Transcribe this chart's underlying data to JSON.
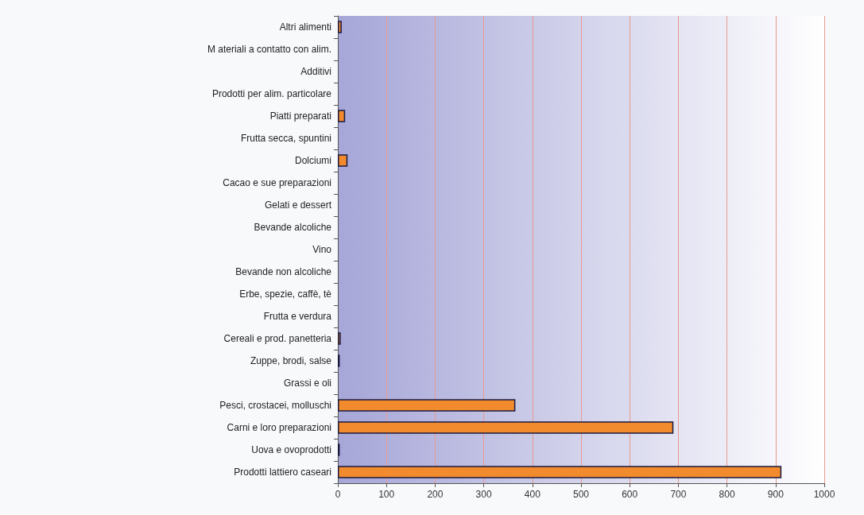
{
  "chart_data": {
    "type": "bar",
    "orientation": "horizontal",
    "categories": [
      "Altri alimenti",
      "M ateriali a contatto con alim.",
      "Additivi",
      "Prodotti per alim. particolare",
      "Piatti preparati",
      "Frutta secca, spuntini",
      "Dolciumi",
      "Cacao e sue preparazioni",
      "Gelati e dessert",
      "Bevande alcoliche",
      "Vino",
      "Bevande non alcoliche",
      "Erbe, spezie, caffè, tè",
      "Frutta e verdura",
      "Cereali e prod. panetteria",
      "Zuppe, brodi, salse",
      "Grassi e oli",
      "Pesci, crostacei, molluschi",
      "Carni e loro preparazioni",
      "Uova e ovoprodotti",
      "Prodotti lattiero caseari"
    ],
    "values": [
      8,
      0,
      0,
      0,
      15,
      0,
      20,
      0,
      0,
      0,
      0,
      0,
      0,
      0,
      6,
      4,
      0,
      365,
      690,
      4,
      912
    ],
    "color": "#f28a2e",
    "xlim": [
      0,
      1000
    ],
    "xticks": [
      0,
      100,
      200,
      300,
      400,
      500,
      600,
      700,
      800,
      900,
      1000
    ],
    "grid": "x"
  }
}
